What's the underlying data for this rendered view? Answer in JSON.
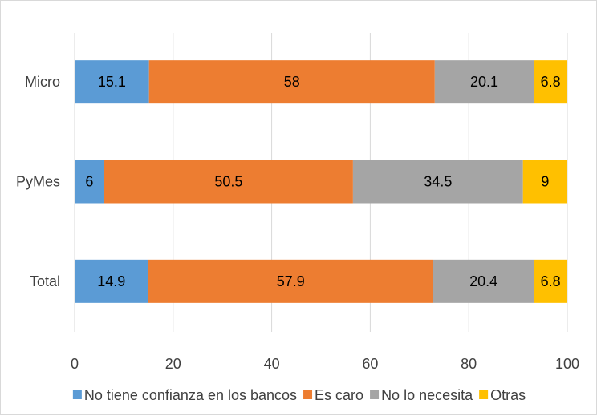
{
  "chart_data": {
    "type": "bar",
    "orientation": "horizontal",
    "stacked": true,
    "title": "",
    "xlabel": "",
    "ylabel": "",
    "xlim": [
      0,
      100
    ],
    "xticks": [
      0,
      20,
      40,
      60,
      80,
      100
    ],
    "grid": true,
    "legend_position": "bottom",
    "categories": [
      "Micro",
      "PyMes",
      "Total"
    ],
    "series": [
      {
        "name": "No tiene confianza en los bancos",
        "color": "#5b9bd5",
        "values": [
          15.1,
          6,
          14.9
        ]
      },
      {
        "name": "Es caro",
        "color": "#ed7d31",
        "values": [
          58,
          50.5,
          57.9
        ]
      },
      {
        "name": "No lo necesita",
        "color": "#a5a5a5",
        "values": [
          20.1,
          34.5,
          20.4
        ]
      },
      {
        "name": "Otras",
        "color": "#ffc000",
        "values": [
          6.8,
          9,
          6.8
        ]
      }
    ]
  }
}
